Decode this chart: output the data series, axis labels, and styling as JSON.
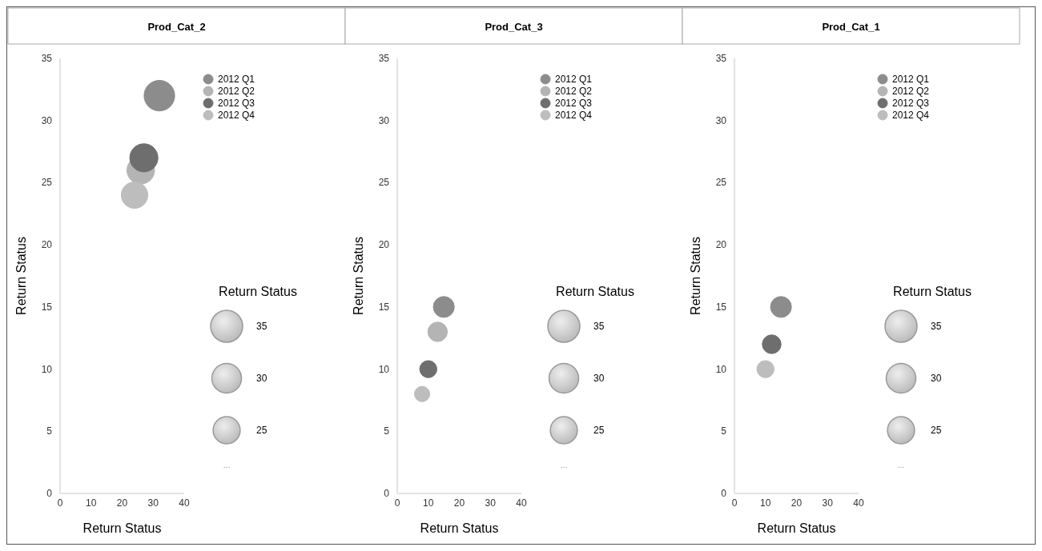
{
  "chart_data": [
    {
      "type": "bubble",
      "title": "Prod_Cat_2",
      "xlabel": "Return Status",
      "ylabel": "Return Status",
      "legend_title": "Return Status",
      "legend": "top right",
      "xlim": [
        0,
        40
      ],
      "xticks": [
        0,
        10,
        20,
        30,
        40
      ],
      "ylim": [
        0,
        35
      ],
      "yticks": [
        0,
        5,
        10,
        15,
        20,
        25,
        30,
        35
      ],
      "size_legend": [
        35,
        30,
        25
      ],
      "annotations": [
        "..."
      ],
      "series": [
        {
          "name": "2012 Q1",
          "color": "#8c8c8c",
          "x": [
            32
          ],
          "values": [
            32
          ],
          "sizes": [
            32
          ]
        },
        {
          "name": "2012 Q2",
          "color": "#b4b4b4",
          "x": [
            26
          ],
          "values": [
            26
          ],
          "sizes": [
            26
          ]
        },
        {
          "name": "2012 Q3",
          "color": "#6e6e6e",
          "x": [
            27
          ],
          "values": [
            27
          ],
          "sizes": [
            27
          ]
        },
        {
          "name": "2012 Q4",
          "color": "#bdbdbd",
          "x": [
            24
          ],
          "values": [
            24
          ],
          "sizes": [
            24
          ]
        }
      ]
    },
    {
      "type": "bubble",
      "title": "Prod_Cat_3",
      "xlabel": "Return Status",
      "ylabel": "Return Status",
      "legend_title": "Return Status",
      "legend": "top right",
      "xlim": [
        0,
        40
      ],
      "xticks": [
        0,
        10,
        20,
        30,
        40
      ],
      "ylim": [
        0,
        35
      ],
      "yticks": [
        0,
        5,
        10,
        15,
        20,
        25,
        30,
        35
      ],
      "size_legend": [
        35,
        30,
        25
      ],
      "annotations": [
        "..."
      ],
      "series": [
        {
          "name": "2012 Q1",
          "color": "#8c8c8c",
          "x": [
            15
          ],
          "values": [
            15
          ],
          "sizes": [
            15
          ]
        },
        {
          "name": "2012 Q2",
          "color": "#b4b4b4",
          "x": [
            13
          ],
          "values": [
            13
          ],
          "sizes": [
            13
          ]
        },
        {
          "name": "2012 Q3",
          "color": "#6e6e6e",
          "x": [
            10
          ],
          "values": [
            10
          ],
          "sizes": [
            10
          ]
        },
        {
          "name": "2012 Q4",
          "color": "#bdbdbd",
          "x": [
            8
          ],
          "values": [
            8
          ],
          "sizes": [
            8
          ]
        }
      ]
    },
    {
      "type": "bubble",
      "title": "Prod_Cat_1",
      "xlabel": "Return Status",
      "ylabel": "Return Status",
      "legend_title": "Return Status",
      "legend": "top right",
      "xlim": [
        0,
        40
      ],
      "xticks": [
        0,
        10,
        20,
        30,
        40
      ],
      "ylim": [
        0,
        35
      ],
      "yticks": [
        0,
        5,
        10,
        15,
        20,
        25,
        30,
        35
      ],
      "size_legend": [
        35,
        30,
        25
      ],
      "annotations": [
        "..."
      ],
      "series": [
        {
          "name": "2012 Q1",
          "color": "#8c8c8c",
          "x": [
            15
          ],
          "values": [
            15
          ],
          "sizes": [
            15
          ]
        },
        {
          "name": "2012 Q2",
          "color": "#b4b4b4",
          "x": [
            null
          ],
          "values": [
            null
          ],
          "sizes": [
            null
          ]
        },
        {
          "name": "2012 Q3",
          "color": "#6e6e6e",
          "x": [
            12
          ],
          "values": [
            12
          ],
          "sizes": [
            12
          ]
        },
        {
          "name": "2012 Q4",
          "color": "#bdbdbd",
          "x": [
            10
          ],
          "values": [
            10
          ],
          "sizes": [
            10
          ]
        }
      ]
    }
  ]
}
